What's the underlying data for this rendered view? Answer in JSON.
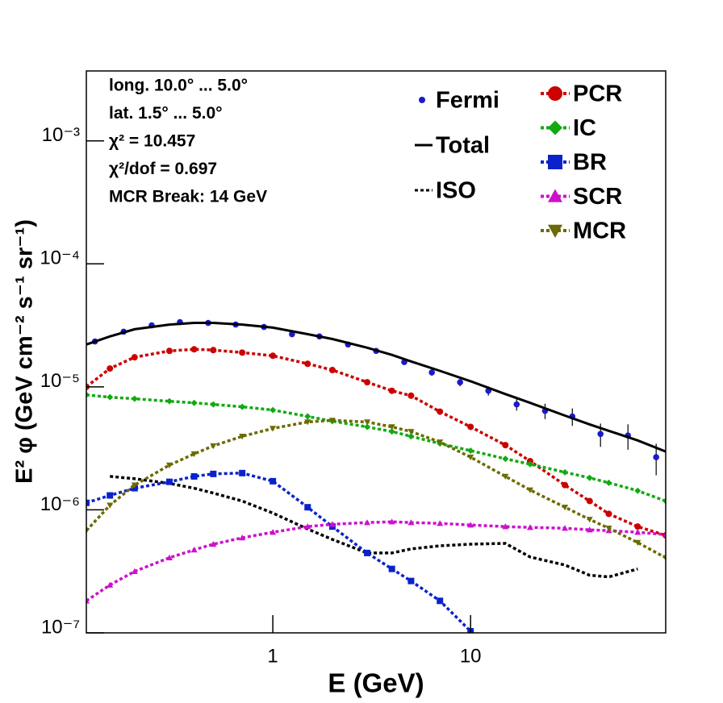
{
  "chart_data": {
    "type": "line",
    "xlabel": "E (GeV)",
    "ylabel": "E² φ (GeV cm⁻² s⁻¹ sr⁻¹)",
    "annotations": [
      "long. 10.0° ... 5.0°",
      "lat. 1.5° ... 5.0°",
      "χ² = 10.457",
      "χ²/dof = 0.697",
      "MCR Break: 14 GeV"
    ],
    "log_x": true,
    "log_y": true,
    "xlim": [
      0.114,
      97
    ],
    "ylim": [
      1e-07,
      0.0037
    ],
    "xticks": [
      1,
      10
    ],
    "yticks": [
      {
        "value": 1e-07,
        "label": "10⁻⁷"
      },
      {
        "value": 1e-06,
        "label": "10⁻⁶"
      },
      {
        "value": 1e-05,
        "label": "10⁻⁵"
      },
      {
        "value": 0.0001,
        "label": "10⁻⁴"
      },
      {
        "value": 0.001,
        "label": "10⁻³"
      }
    ],
    "x": [
      0.114,
      0.15,
      0.2,
      0.3,
      0.4,
      0.5,
      0.7,
      1,
      1.5,
      2,
      3,
      4,
      5,
      7,
      10,
      15,
      20,
      30,
      40,
      50,
      70,
      97
    ],
    "series": [
      {
        "name": "Fermi",
        "color": "#1a1acc",
        "marker": "dot",
        "dash": "none",
        "x": [
          0.126,
          0.176,
          0.244,
          0.339,
          0.471,
          0.649,
          0.902,
          1.25,
          1.72,
          2.4,
          3.33,
          4.62,
          6.37,
          8.85,
          12.3,
          17.1,
          23.8,
          32.7,
          45.4,
          62.5,
          86.8
        ],
        "values": [
          2.34e-05,
          2.81e-05,
          3.16e-05,
          3.36e-05,
          3.31e-05,
          3.21e-05,
          3.07e-05,
          2.68e-05,
          2.57e-05,
          2.21e-05,
          1.96e-05,
          1.59e-05,
          1.31e-05,
          1.09e-05,
          9.29e-06,
          7.2e-06,
          6.38e-06,
          5.75e-06,
          4.14e-06,
          4.02e-06,
          2.68e-06
        ],
        "errors": [
          8e-07,
          8e-07,
          8e-07,
          8e-07,
          8e-07,
          8e-07,
          8e-07,
          8e-07,
          8e-07,
          8e-07,
          8e-07,
          8e-07,
          8e-07,
          8e-07,
          8e-07,
          7.9e-07,
          9.1e-07,
          9.3e-07,
          8.9e-07,
          9.4e-07,
          7.7e-07
        ]
      },
      {
        "name": "Total",
        "color": "#000000",
        "marker": "none",
        "dash": "solid",
        "values": [
          2.21e-05,
          2.57e-05,
          2.94e-05,
          3.21e-05,
          3.31e-05,
          3.31e-05,
          3.21e-05,
          3.03e-05,
          2.68e-05,
          2.45e-05,
          2.08e-05,
          1.82e-05,
          1.61e-05,
          1.35e-05,
          1.11e-05,
          8.74e-06,
          7.41e-06,
          5.84e-06,
          4.95e-06,
          4.39e-06,
          3.67e-06,
          2.98e-06
        ]
      },
      {
        "name": "ISO",
        "color": "#000000",
        "marker": "none",
        "dash": "dotted",
        "values": [
          null,
          1.87e-06,
          1.79e-06,
          1.64e-06,
          1.5e-06,
          1.37e-06,
          1.18e-06,
          9.42e-07,
          6.98e-07,
          5.75e-07,
          4.46e-07,
          4.46e-07,
          4.81e-07,
          5.1e-07,
          5.26e-07,
          5.34e-07,
          4.14e-07,
          3.56e-07,
          2.94e-07,
          2.85e-07,
          3.31e-07,
          null
        ]
      },
      {
        "name": "PCR",
        "color": "#cc0000",
        "marker": "circle",
        "dash": "dotted",
        "values": [
          1e-05,
          1.41e-05,
          1.74e-05,
          1.96e-05,
          2.02e-05,
          1.99e-05,
          1.9e-05,
          1.79e-05,
          1.54e-05,
          1.37e-05,
          1.09e-05,
          9.29e-06,
          8.48e-06,
          6.29e-06,
          4.73e-06,
          3.36e-06,
          2.49e-06,
          1.59e-06,
          1.18e-06,
          9.28e-07,
          7.31e-07,
          6.2e-07
        ]
      },
      {
        "name": "IC",
        "color": "#11aa11",
        "marker": "diamond",
        "dash": "dotted",
        "values": [
          8.61e-06,
          8.24e-06,
          8e-06,
          7.64e-06,
          7.41e-06,
          7.2e-06,
          6.88e-06,
          6.48e-06,
          5.75e-06,
          5.26e-06,
          4.73e-06,
          4.33e-06,
          3.96e-06,
          3.46e-06,
          3.03e-06,
          2.6e-06,
          2.35e-06,
          2.02e-06,
          1.82e-06,
          1.66e-06,
          1.43e-06,
          1.18e-06
        ]
      },
      {
        "name": "BR",
        "color": "#0a22cc",
        "marker": "square",
        "dash": "dotted",
        "values": [
          1.14e-06,
          1.31e-06,
          1.5e-06,
          1.69e-06,
          1.87e-06,
          1.96e-06,
          1.99e-06,
          1.71e-06,
          1.05e-06,
          7.31e-07,
          4.46e-07,
          3.31e-07,
          2.64e-07,
          1.82e-07,
          1.03e-07,
          null,
          null,
          null,
          null,
          null,
          null,
          null
        ]
      },
      {
        "name": "SCR",
        "color": "#cc11cc",
        "marker": "triangle",
        "dash": "dotted",
        "values": [
          1.82e-07,
          2.45e-07,
          3.16e-07,
          4.08e-07,
          4.73e-07,
          5.26e-07,
          5.93e-07,
          6.58e-07,
          7.31e-07,
          7.64e-07,
          7.88e-07,
          8e-07,
          7.88e-07,
          7.76e-07,
          7.53e-07,
          7.31e-07,
          7.2e-07,
          7.09e-07,
          6.88e-07,
          6.78e-07,
          6.58e-07,
          6.29e-07
        ]
      },
      {
        "name": "MCR",
        "color": "#6b6b00",
        "marker": "triangle-down",
        "dash": "dotted",
        "values": [
          6.78e-07,
          1.09e-06,
          1.59e-06,
          2.31e-06,
          2.85e-06,
          3.31e-06,
          3.96e-06,
          4.59e-06,
          5.18e-06,
          5.34e-06,
          5.18e-06,
          4.73e-06,
          4.33e-06,
          3.56e-06,
          2.68e-06,
          1.87e-06,
          1.45e-06,
          1.05e-06,
          8.36e-07,
          7.09e-07,
          5.42e-07,
          4.08e-07
        ]
      }
    ]
  }
}
